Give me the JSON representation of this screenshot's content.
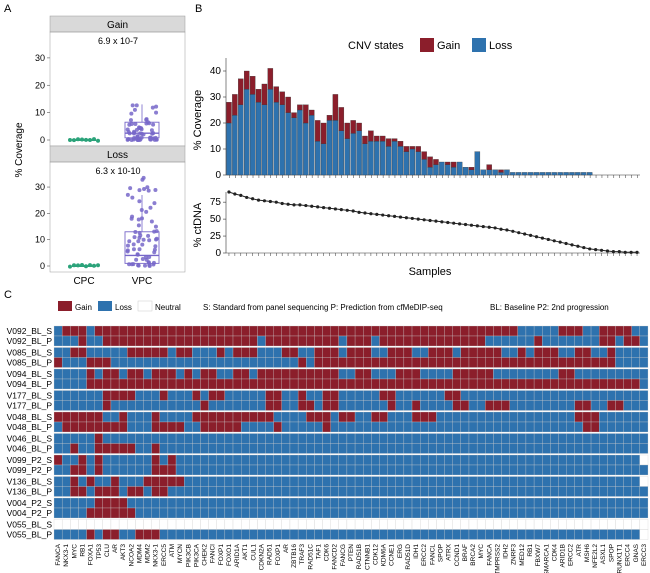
{
  "panel_labels": {
    "a": "A",
    "b": "B",
    "c": "C"
  },
  "colors": {
    "gain": "#8B1E2B",
    "loss": "#2E72AE",
    "neutral": "#ffffff",
    "cpc": "#2BA37A",
    "vpc": "#7767C9",
    "facet": "#D9D9D9",
    "line": "#222222"
  },
  "chart_data": [
    {
      "type": "box",
      "panel": "A",
      "ylabel": "% Coverage",
      "categories": [
        "CPC",
        "VPC"
      ],
      "ylim": [
        0,
        40
      ],
      "yticks": [
        "0",
        "10",
        "20",
        "30"
      ],
      "facets": [
        {
          "name": "Gain",
          "pvalue": "6.9 x 10-7",
          "cpc": {
            "median": 0,
            "q1": 0,
            "q3": 0.2
          },
          "vpc": {
            "median": 2.5,
            "q1": 0.8,
            "q3": 6.5,
            "whisker_low": 0,
            "whisker_high": 13
          }
        },
        {
          "name": "Loss",
          "pvalue": "6.3 x 10-10",
          "cpc": {
            "median": 0,
            "q1": 0,
            "q3": 0.2
          },
          "vpc": {
            "median": 4,
            "q1": 1,
            "q3": 13,
            "whisker_low": 0,
            "whisker_high": 27
          }
        }
      ]
    },
    {
      "type": "stacked-bar",
      "panel": "B",
      "ylabel": "% Coverage",
      "legend_title": "CNV states",
      "series": [
        {
          "name": "Gain",
          "values": [
            8,
            8,
            10,
            7,
            7,
            5,
            8,
            8,
            6,
            5,
            6,
            2,
            2,
            7,
            2,
            8,
            8,
            2,
            10,
            9,
            6,
            5,
            3,
            3,
            4,
            2,
            2,
            3,
            1,
            2,
            2,
            1,
            2,
            3,
            4,
            2,
            0,
            1,
            2,
            0,
            0,
            1,
            0,
            0,
            2,
            0,
            1,
            0,
            0,
            0,
            0,
            0,
            0,
            0,
            0,
            0,
            0,
            0,
            0,
            0,
            0,
            0,
            0,
            0,
            0,
            0,
            0,
            0,
            0,
            0
          ]
        },
        {
          "name": "Loss",
          "values": [
            20,
            23,
            27,
            33,
            31,
            28,
            27,
            33,
            28,
            27,
            24,
            22,
            25,
            20,
            23,
            13,
            12,
            21,
            21,
            17,
            14,
            16,
            17,
            12,
            13,
            13,
            13,
            11,
            13,
            11,
            9,
            10,
            9,
            6,
            3,
            4,
            5,
            4,
            3,
            5,
            3,
            2,
            9,
            2,
            2,
            2,
            1,
            2,
            1,
            1,
            1,
            1,
            1,
            1,
            1,
            1,
            1,
            1,
            1,
            1,
            1,
            1,
            0,
            0,
            0,
            0,
            0,
            0,
            0,
            0
          ]
        }
      ],
      "ylim": [
        0,
        45
      ],
      "yticks": [
        "0",
        "10",
        "20",
        "30",
        "40"
      ]
    },
    {
      "type": "line",
      "panel": "B",
      "ylabel": "% ctDNA",
      "xlabel": "Samples",
      "values": [
        90,
        87,
        85,
        82,
        80,
        78,
        77,
        76,
        75,
        73,
        72,
        71,
        71,
        70,
        69,
        68,
        67,
        66,
        65,
        64,
        63,
        62,
        60,
        59,
        58,
        57,
        56,
        55,
        54,
        53,
        52,
        51,
        50,
        49,
        48,
        47,
        46,
        45,
        44,
        43,
        42,
        41,
        40,
        39,
        38,
        37,
        35,
        34,
        32,
        30,
        28,
        26,
        24,
        22,
        20,
        18,
        16,
        14,
        12,
        10,
        8,
        6,
        5,
        4,
        3,
        2,
        2,
        1,
        1,
        1
      ],
      "ylim": [
        0,
        90
      ],
      "yticks": [
        "0",
        "25",
        "50",
        "75"
      ]
    },
    {
      "type": "heatmap",
      "panel": "C",
      "legend": {
        "gain": "Gain",
        "loss": "Loss",
        "neutral": "Neutral"
      },
      "legend_note": "S: Standard from panel sequencing P: Prediction from cfMeDIP-seq",
      "legend_note2": "BL: Baseline  P2: 2nd progression",
      "rows": [
        "V092_BL_S",
        "V092_BL_P",
        "V085_BL_S",
        "V085_BL_P",
        "V094_BL_S",
        "V094_BL_P",
        "V177_BL_S",
        "V177_BL_P",
        "V048_BL_S",
        "V048_BL_P",
        "V046_BL_S",
        "V046_BL_P",
        "V099_P2_S",
        "V099_P2_P",
        "V136_BL_S",
        "V136_BL_P",
        "V004_P2_S",
        "V004_P2_P",
        "V055_BL_S",
        "V055_BL_P"
      ],
      "columns": [
        "FANCA",
        "NKX3-1",
        "MYC",
        "RB1",
        "FOXA1",
        "TP53",
        "CLU",
        "AR",
        "AKT3",
        "NCOA2",
        "MDM4",
        "MDM2",
        "NKX3-1",
        "ERCC5",
        "ATM",
        "MYCN",
        "PIK3CB",
        "PIK3CA",
        "CHEK2",
        "FANCI",
        "FOXP1",
        "FOXO1",
        "ARID1A",
        "AKT1",
        "CUL1",
        "CDKN2A",
        "RAD51",
        "FOXP1",
        "AR",
        "ZBTB16",
        "TRAF3",
        "RAD51C",
        "TAF1",
        "CDK6",
        "FANCD2",
        "FANCG",
        "PTEN",
        "RAD51B",
        "CTNNB1",
        "CDK12",
        "KDM6A",
        "CCNE1",
        "ERG",
        "RAD51D",
        "IDH1",
        "ERCC2",
        "FANCL",
        "SPOP",
        "ATRX",
        "CCND1",
        "BRAF",
        "BRCA2",
        "MYC",
        "FANCA",
        "TMPRSS2",
        "IDH2",
        "ZNRF3",
        "MED12",
        "RB1",
        "FBXW7",
        "SMARCA1",
        "CDK4",
        "ARID1B",
        "ERCC2",
        "ATR",
        "MSH6",
        "NFE2L2",
        "ASXL1",
        "SPOP",
        "RUNX1T1",
        "ERCC4",
        "GNAS",
        "ERCC3"
      ],
      "values": [
        "LGGGLGGGGGGGGGGGGGGGGGGGGGGGGGGGGGGGGGGGGGGGGGGGGGGGGGGGGLLLLLGGGLLGGGGLL",
        "LLLGLLGGGGGGGGGGGGGGGGGGGLGGGGGGGGGLGGGLGGGGGGGGGGGGGLLLLLLGLLLLLLLGGLGGL",
        "LLGGLLLLLGGGGGLGGLLLGLGGGLLLGGLLGGGLGGGLLGGGLLGGGLGGGGGLLGLGGGLLGGLLGLLLL",
        "GLLLGGGLLLLLLLLLLLLLLLLLLLLLLLGLGGGGGGGGGGGGGGGGGGGGGGGGGGGGGGGGGGGGGLLLL",
        "LLLLGLGGLGGLGGGLGLGGLLGGLGGGGGGGGGGLLGGLLLGGGLLLLGGGGGLLLLLLLLGGLLLLLLLLL",
        "LLLLGGGGGGGGGGGGGGGGGGGGGGGGGGGGGGGGGGGGGGGGGGGGGGGGGGGGGGGGGGGGGGGGGGGGL",
        "LLLLLLGGGGLLLGLLLGLGGLLLLLGGLLGLLGGLLLLLGGLLLLLLGGLLLLLLLLLLLLLLLLLLLLLLL",
        "LLLLLLGLLLLLLLLLLLGLLLLLLLGGLLGGLGGLLLLLLGLLGLLLLGGLLGGGLLLLLLLLGGLLGGLLL",
        "GGGGGGLLGLLLGLLLLGGGGGGGGGGLLLLGGGLGGLLGGLLLGGGLLLLLLLLLLLLLLLLLGGGLLLLLL",
        "LGGGGGGGGLLLGGGGLLGGGGGLLLLGLLLLLGLLLLLLLLLLLLLLLLLLLLLLLLLLLLLLLGGLLLLLL",
        "LLLLLGLLLLLLLLLLLLLLLLLLLLLLLLLLLLLLLLLLLLLLLLLLLLLLLLLLLLLLLLLLLLLLLLLLL",
        "LLGLLGGGGGLLGLLLLLLLLLLLLLLLLLLLLLLLLLLLLLLLLLLLLLLLLLLLLLLLLLLLLLLLLLLLL",
        "GLLGLGLLLLLLGLGLLLLLLLLLLLLLLLLLLLLLLLLLLLLLLLLLLLLLLLLLLLLLLLLLLLLLLLLL",
        "LLGGLGLLLLLLGGGLLLLLLLLLLLLLLLLLLLLLLLLLLLLLLLLLLLLLLLLLLLLLLLLLLLLLLLLLL",
        "LLGLGLLGLLLGGGGGLLLLLLLLLLLLLLLLLLLLLLLLLLLLLLLLLLLLLLLLLLLLLLLLLLLLLLLL",
        "LLGGLGGGLGGLGGLLLLLLLLLLLLLLLLLLLLLLLLLLLLLLLLLLLLLLLLLLLLLLLLLLLLLLLLLLL",
        "LLLLLGGGGLLLLLLLLLLLLLLLLLLLLLLLLLLLLLLLLLLLLLLLLLLLLLLLLLLLLLLLLLLLLLLLL",
        "LLLLGGGGGGLLLLLLLLLLLLLLLLLLLLLLLLLLLLLLLLLLLLLLLLLLLLLLLLLLLLLLLLLLLLLLL",
        "NNNNNNNNNNNNNNNNNNNNNNNNNNNNNNNNNNNNNNNNNNNNNNNNNNNNNNNNNNNNNNNNNNNNNNNNN",
        "LLLLGLGGLLGGGLLLLLLLLLLLLLLLLLLLLLLLLLLLLLLLLLLLLLLLLLLLLLLLLLLLLLLLLLLL"
      ]
    }
  ]
}
